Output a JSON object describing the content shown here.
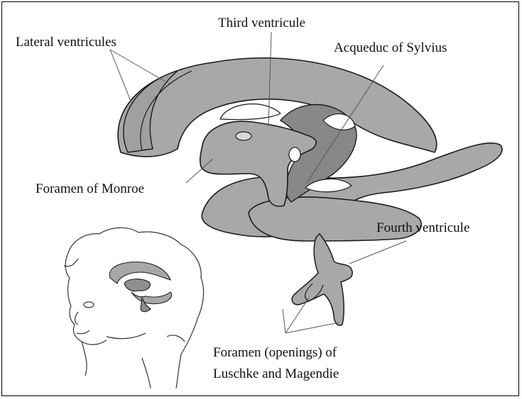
{
  "labels": {
    "lateral": "Lateral ventricules",
    "third": "Third ventricule",
    "aqueduct": "Acqueduc of Sylvius",
    "monroe": "Foramen of Monroe",
    "fourth": "Fourth ventricule",
    "foramen_line1": "Foramen (openings) of",
    "foramen_line2": "Luschke and Magendie"
  },
  "colors": {
    "fill": "#a8a8a8",
    "fill_dark": "#8e8e8e",
    "stroke": "#1a1a1a"
  }
}
